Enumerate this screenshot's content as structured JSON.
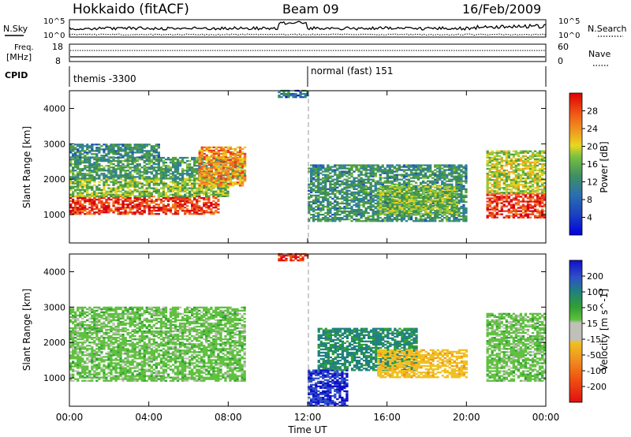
{
  "header": {
    "station": "Hokkaido (fitACF)",
    "beam": "Beam 09",
    "date": "16/Feb/2009"
  },
  "noise_panel": {
    "left_label": "N.Sky",
    "right_label": "N.Search",
    "left_ticks": [
      "10^5",
      "10^0"
    ],
    "right_ticks": [
      "10^5",
      "10^0"
    ]
  },
  "freq_panel": {
    "left_label_1": "Freq.",
    "left_label_2": "[MHz]",
    "left_ticks": [
      "18",
      "8"
    ],
    "right_label": "Nave",
    "right_ticks": [
      "60",
      "0"
    ]
  },
  "cpid": {
    "label": "CPID",
    "segments": [
      {
        "text": "themis -3300",
        "start_hour": 0,
        "end_hour": 12
      },
      {
        "text": "normal (fast) 151",
        "start_hour": 12,
        "end_hour": 24
      }
    ]
  },
  "axes": {
    "ylabel": "Slant Range [km]",
    "yticks": [
      "1000",
      "2000",
      "3000",
      "4000"
    ],
    "ylim": [
      200,
      4500
    ],
    "xlabel": "Time UT",
    "xticks": [
      "00:00",
      "04:00",
      "08:00",
      "12:00",
      "16:00",
      "20:00",
      "00:00"
    ],
    "xlim": [
      0,
      24
    ]
  },
  "colors": {
    "power": [
      "#0000d8",
      "#1f4fb8",
      "#2f7fa0",
      "#3a8a5a",
      "#4fa040",
      "#8bc83a",
      "#e8d020",
      "#f0a020",
      "#f07020",
      "#e83a20",
      "#d80010"
    ],
    "velocity": [
      "#1010c8",
      "#3050c8",
      "#208080",
      "#30a030",
      "#60c040",
      "#c0c0b8",
      "#f0c020",
      "#f09020",
      "#f05010",
      "#e01010"
    ]
  },
  "chart_data": [
    {
      "type": "heatmap",
      "title": "",
      "xlabel": "",
      "ylabel": "Slant Range [km]",
      "colorbar_label": "Power [dB]",
      "colorbar_ticks": [
        "4",
        "8",
        "12",
        "16",
        "20",
        "24",
        "28"
      ],
      "value_range": [
        0,
        30
      ],
      "regions": [
        {
          "t_start": 0.0,
          "t_end": 7.5,
          "range_km": [
            1000,
            1500
          ],
          "value": 27
        },
        {
          "t_start": 0.0,
          "t_end": 8.0,
          "range_km": [
            1500,
            2000
          ],
          "value": 14
        },
        {
          "t_start": 0.0,
          "t_end": 8.8,
          "range_km": [
            2000,
            2600
          ],
          "value": 10
        },
        {
          "t_start": 6.5,
          "t_end": 8.8,
          "range_km": [
            1800,
            2900
          ],
          "value": 22
        },
        {
          "t_start": 0.0,
          "t_end": 4.5,
          "range_km": [
            2600,
            3000
          ],
          "value": 8
        },
        {
          "t_start": 12.0,
          "t_end": 20.0,
          "range_km": [
            800,
            2400
          ],
          "value": 9
        },
        {
          "t_start": 15.5,
          "t_end": 19.5,
          "range_km": [
            1000,
            1800
          ],
          "value": 14
        },
        {
          "t_start": 21.0,
          "t_end": 24.0,
          "range_km": [
            900,
            1600
          ],
          "value": 27
        },
        {
          "t_start": 21.0,
          "t_end": 24.0,
          "range_km": [
            1600,
            2800
          ],
          "value": 16
        },
        {
          "t_start": 10.5,
          "t_end": 12.0,
          "range_km": [
            4300,
            4500
          ],
          "value": 6
        }
      ]
    },
    {
      "type": "heatmap",
      "title": "",
      "xlabel": "Time UT",
      "ylabel": "Slant Range [km]",
      "colorbar_label": "Velocity [m s^-1]",
      "colorbar_ticks": [
        "200",
        "100",
        "50",
        "15",
        "-15",
        "-50",
        "-100",
        "-200"
      ],
      "value_range": [
        -250,
        250
      ],
      "regions": [
        {
          "t_start": 0.0,
          "t_end": 8.8,
          "range_km": [
            900,
            3000
          ],
          "value": 0
        },
        {
          "t_start": 12.5,
          "t_end": 17.5,
          "range_km": [
            1200,
            2400
          ],
          "value": 40
        },
        {
          "t_start": 15.5,
          "t_end": 20.0,
          "range_km": [
            1000,
            1800
          ],
          "value": -60
        },
        {
          "t_start": 12.0,
          "t_end": 14.0,
          "range_km": [
            200,
            1200
          ],
          "value": 150
        },
        {
          "t_start": 21.0,
          "t_end": 24.0,
          "range_km": [
            900,
            2800
          ],
          "value": 0
        },
        {
          "t_start": 10.5,
          "t_end": 12.0,
          "range_km": [
            4300,
            4500
          ],
          "value": -200
        }
      ]
    }
  ]
}
